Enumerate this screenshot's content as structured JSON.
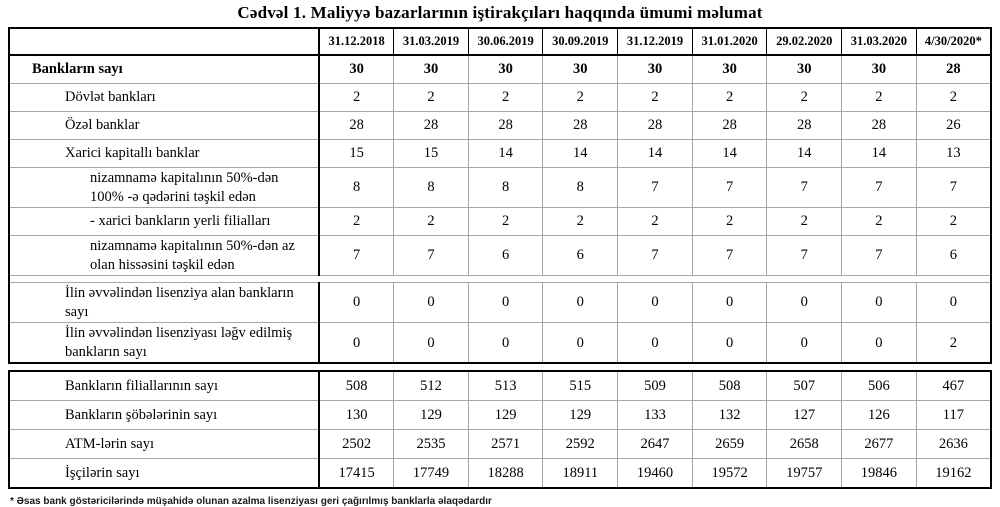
{
  "page": {
    "title": "Cədvəl 1. Maliyyə bazarlarının iştirakçıları haqqında ümumi məlumat",
    "footnote": "* Əsas bank göstəricilərində müşahidə olunan azalma lisenziyası geri çağırılmış banklarla əlaqədardır"
  },
  "table": {
    "col_headers": [
      "31.12.2018",
      "31.03.2019",
      "30.06.2019",
      "30.09.2019",
      "31.12.2019",
      "31.01.2020",
      "29.02.2020",
      "31.03.2020",
      "4/30/2020*"
    ],
    "section1": [
      {
        "label": "Bankların sayı",
        "indent": 1,
        "bold": true,
        "values": [
          "30",
          "30",
          "30",
          "30",
          "30",
          "30",
          "30",
          "30",
          "28"
        ]
      },
      {
        "label": "Dövlət bankları",
        "indent": 2,
        "values": [
          "2",
          "2",
          "2",
          "2",
          "2",
          "2",
          "2",
          "2",
          "2"
        ]
      },
      {
        "label": "Özəl banklar",
        "indent": 2,
        "values": [
          "28",
          "28",
          "28",
          "28",
          "28",
          "28",
          "28",
          "28",
          "26"
        ]
      },
      {
        "label": "Xarici kapitallı banklar",
        "indent": 2,
        "values": [
          "15",
          "15",
          "14",
          "14",
          "14",
          "14",
          "14",
          "14",
          "13"
        ]
      },
      {
        "label": "nizamnamə kapitalının 50%-dən 100% -ə qədərini təşkil edən",
        "indent": 3,
        "values": [
          "8",
          "8",
          "8",
          "8",
          "7",
          "7",
          "7",
          "7",
          "7"
        ]
      },
      {
        "label": "-  xarici bankların yerli filialları",
        "indent": 3,
        "values": [
          "2",
          "2",
          "2",
          "2",
          "2",
          "2",
          "2",
          "2",
          "2"
        ]
      },
      {
        "label": "nizamnamə kapitalının 50%-dən az olan hissəsini  təşkil edən",
        "indent": 3,
        "values": [
          "7",
          "7",
          "6",
          "6",
          "7",
          "7",
          "7",
          "7",
          "6"
        ]
      },
      {
        "spacer": true
      },
      {
        "label": "İlin əvvəlindən lisenziya alan bankların sayı",
        "indent": 2,
        "values": [
          "0",
          "0",
          "0",
          "0",
          "0",
          "0",
          "0",
          "0",
          "0"
        ]
      },
      {
        "label": "İlin əvvəlindən lisenziyası ləğv edilmiş bankların sayı",
        "indent": 2,
        "values": [
          "0",
          "0",
          "0",
          "0",
          "0",
          "0",
          "0",
          "0",
          "2"
        ]
      }
    ],
    "section2": [
      {
        "label": "Bankların filiallarının sayı",
        "indent": 2,
        "values": [
          "508",
          "512",
          "513",
          "515",
          "509",
          "508",
          "507",
          "506",
          "467"
        ]
      },
      {
        "label": "Bankların şöbələrinin sayı",
        "indent": 2,
        "values": [
          "130",
          "129",
          "129",
          "129",
          "133",
          "132",
          "127",
          "126",
          "117"
        ]
      },
      {
        "label": "ATM-lərin sayı",
        "indent": 2,
        "values": [
          "2502",
          "2535",
          "2571",
          "2592",
          "2647",
          "2659",
          "2658",
          "2677",
          "2636"
        ]
      },
      {
        "label": "İşçilərin sayı",
        "indent": 2,
        "values": [
          "17415",
          "17749",
          "18288",
          "18911",
          "19460",
          "19572",
          "19757",
          "19846",
          "19162"
        ]
      }
    ]
  }
}
